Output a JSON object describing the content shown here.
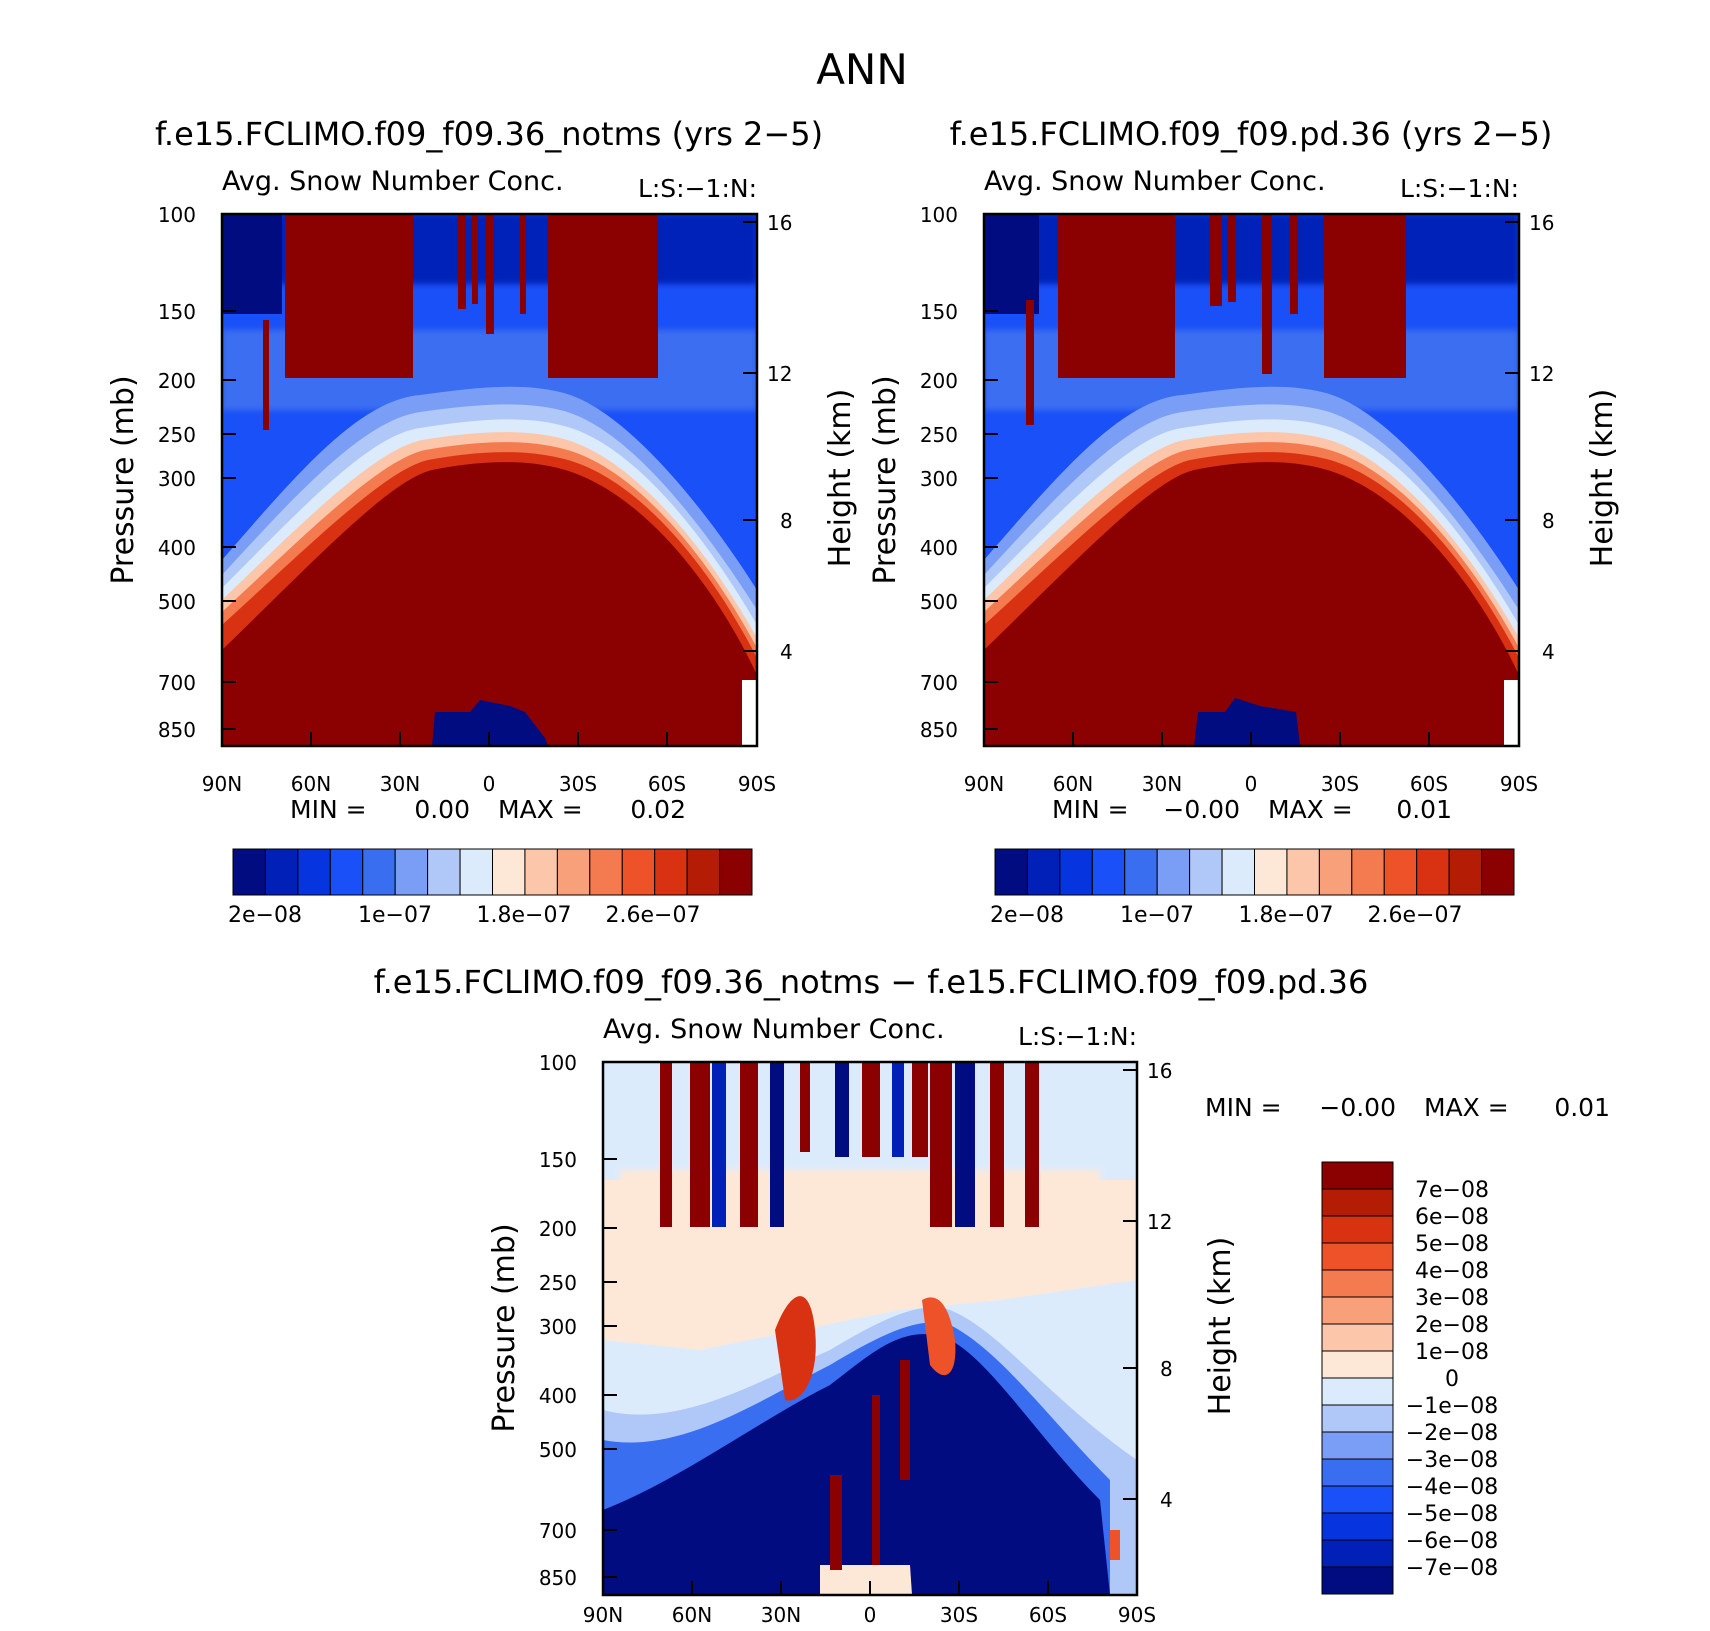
{
  "main_title": "ANN",
  "colors": {
    "seq": [
      "#000c80",
      "#0020b8",
      "#0635e0",
      "#1a50f7",
      "#3a6ef0",
      "#7a9ef5",
      "#b0c8f8",
      "#dcebfc",
      "#fde8d8",
      "#fcc6aa",
      "#f8a07a",
      "#f47a50",
      "#ee5228",
      "#d83212",
      "#b51c06",
      "#8b0000"
    ],
    "diff": [
      "#000c80",
      "#0020b8",
      "#0635e0",
      "#1a50f7",
      "#3a6ef0",
      "#7a9ef5",
      "#b0c8f8",
      "#dcebfc",
      "#fde8d8",
      "#fcc6aa",
      "#f8a07a",
      "#f47a50",
      "#ee5228",
      "#d83212",
      "#b51c06",
      "#8b0000"
    ]
  },
  "chart_data": [
    {
      "type": "heatmap",
      "id": "left",
      "title": "f.e15.FCLIMO.f09_f09.36_notms (yrs 2−5)",
      "left_label": "Avg. Snow Number Conc.",
      "right_label": "L:S:−1:N:",
      "ylabel": "Pressure (mb)",
      "ylabel_right": "Height (km)",
      "x_ticks": [
        "90N",
        "60N",
        "30N",
        "0",
        "30S",
        "60S",
        "90S"
      ],
      "x_range": [
        90,
        -90
      ],
      "y_ticks": [
        "100",
        "150",
        "200",
        "250",
        "300",
        "400",
        "500",
        "700",
        "850"
      ],
      "y_range": [
        100,
        925
      ],
      "y_right_ticks": [
        "16",
        "12",
        "8",
        "4"
      ],
      "min_label": "MIN =",
      "min_value": "0.00",
      "max_label": "MAX =",
      "max_value": "0.02",
      "colorbar_labels": [
        "2e−08",
        "1e−07",
        "1.8e−07",
        "2.6e−07"
      ],
      "colorbar_levels": 16
    },
    {
      "type": "heatmap",
      "id": "right",
      "title": "f.e15.FCLIMO.f09_f09.pd.36 (yrs 2−5)",
      "left_label": "Avg. Snow Number Conc.",
      "right_label": "L:S:−1:N:",
      "ylabel": "Pressure (mb)",
      "ylabel_right": "Height (km)",
      "x_ticks": [
        "90N",
        "60N",
        "30N",
        "0",
        "30S",
        "60S",
        "90S"
      ],
      "x_range": [
        90,
        -90
      ],
      "y_ticks": [
        "100",
        "150",
        "200",
        "250",
        "300",
        "400",
        "500",
        "700",
        "850"
      ],
      "y_range": [
        100,
        925
      ],
      "y_right_ticks": [
        "16",
        "12",
        "8",
        "4"
      ],
      "min_label": "MIN =",
      "min_value": "−0.00",
      "max_label": "MAX =",
      "max_value": "0.01",
      "colorbar_labels": [
        "2e−08",
        "1e−07",
        "1.8e−07",
        "2.6e−07"
      ],
      "colorbar_levels": 16
    },
    {
      "type": "heatmap",
      "id": "diff",
      "title": "f.e15.FCLIMO.f09_f09.36_notms − f.e15.FCLIMO.f09_f09.pd.36",
      "left_label": "Avg. Snow Number Conc.",
      "right_label": "L:S:−1:N:",
      "ylabel": "Pressure (mb)",
      "ylabel_right": "Height (km)",
      "x_ticks": [
        "90N",
        "60N",
        "30N",
        "0",
        "30S",
        "60S",
        "90S"
      ],
      "x_range": [
        90,
        -90
      ],
      "y_ticks": [
        "100",
        "150",
        "200",
        "250",
        "300",
        "400",
        "500",
        "700",
        "850"
      ],
      "y_range": [
        100,
        925
      ],
      "y_right_ticks": [
        "16",
        "12",
        "8",
        "4"
      ],
      "min_label": "MIN =",
      "min_value": "−0.00",
      "max_label": "MAX =",
      "max_value": "0.01",
      "colorbar_labels": [
        "7e−08",
        "6e−08",
        "5e−08",
        "4e−08",
        "3e−08",
        "2e−08",
        "1e−08",
        "0",
        "−1e−08",
        "−2e−08",
        "−3e−08",
        "−4e−08",
        "−5e−08",
        "−6e−08",
        "−7e−08"
      ],
      "colorbar_levels": 16
    }
  ]
}
